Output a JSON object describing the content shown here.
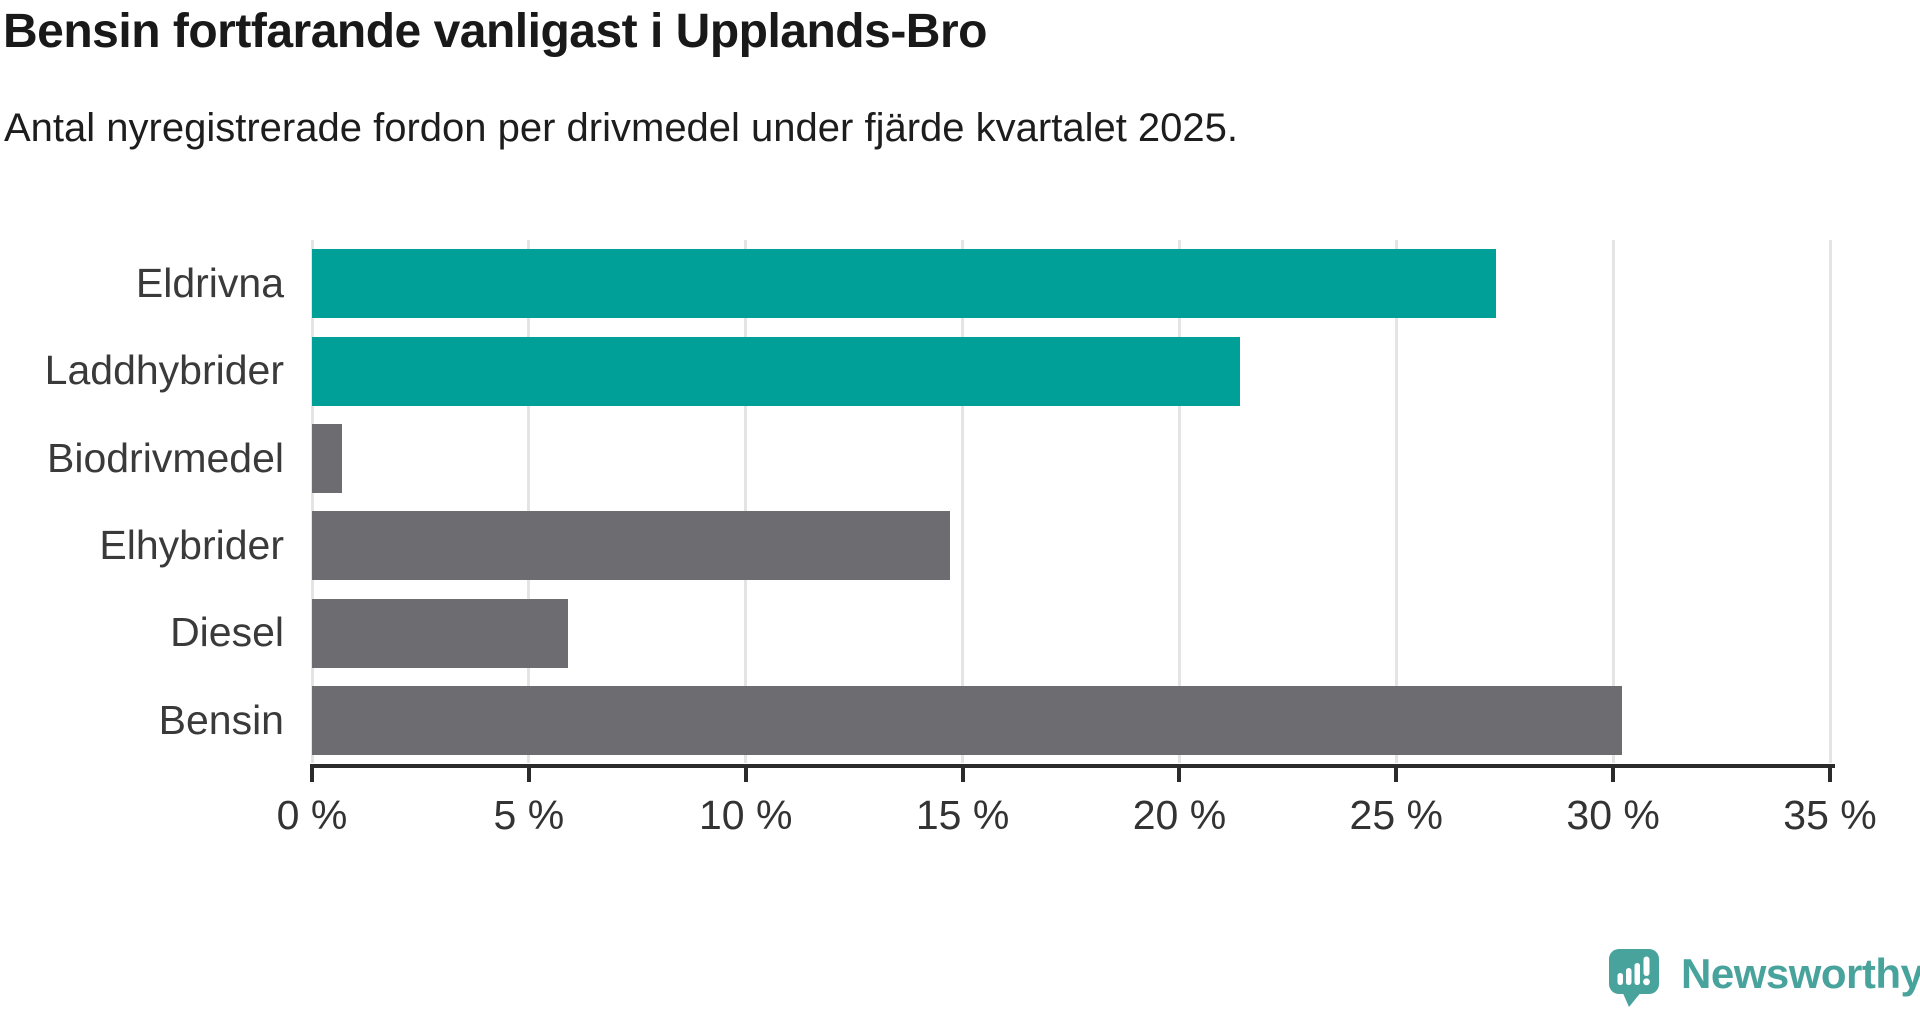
{
  "chart_data": {
    "type": "bar",
    "orientation": "horizontal",
    "title": "Bensin fortfarande vanligast i Upplands-Bro",
    "subtitle": "Antal nyregistrerade fordon per drivmedel under fjärde kvartalet 2025.",
    "categories": [
      "Eldrivna",
      "Laddhybrider",
      "Biodrivmedel",
      "Elhybrider",
      "Diesel",
      "Bensin"
    ],
    "values": [
      27.3,
      21.4,
      0.7,
      14.7,
      5.9,
      30.2
    ],
    "unit": "%",
    "bar_colors": [
      "#00a099",
      "#00a099",
      "#6c6c71",
      "#6c6c71",
      "#6c6c71",
      "#6c6c71"
    ],
    "highlight_color": "#00a099",
    "default_color": "#6c6c71",
    "xlabel": "",
    "ylabel": "",
    "xlim": [
      0,
      35
    ],
    "x_ticks": [
      0,
      5,
      10,
      15,
      20,
      25,
      30,
      35
    ],
    "x_tick_labels": [
      "0 %",
      "5 %",
      "10 %",
      "15 %",
      "20 %",
      "25 %",
      "30 %",
      "35 %"
    ],
    "grid": "vertical gridlines",
    "legend": "none"
  },
  "branding": {
    "logo_text": "Newsworthy",
    "logo_color": "#48a39c"
  }
}
